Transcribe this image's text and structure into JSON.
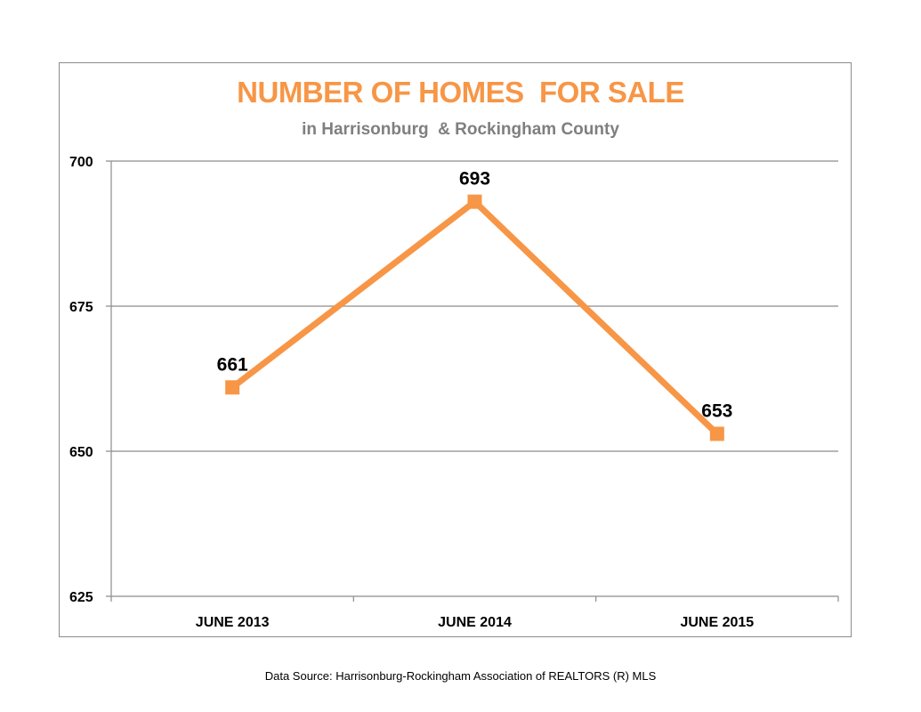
{
  "chart_data": {
    "type": "line",
    "title": "NUMBER OF HOMES  FOR SALE",
    "subtitle": "in Harrisonburg  & Rockingham County",
    "categories": [
      "JUNE 2013",
      "JUNE 2014",
      "JUNE 2015"
    ],
    "series": [
      {
        "values": [
          661,
          693,
          653
        ],
        "color": "#f79646"
      }
    ],
    "ylim": [
      625,
      700
    ],
    "yticks": [
      625,
      650,
      675,
      700
    ],
    "grid": true,
    "legend": "none",
    "title_color": "#f79646"
  },
  "footer": {
    "source": "Data Source: Harrisonburg-Rockingham Association of REALTORS (R) MLS"
  }
}
